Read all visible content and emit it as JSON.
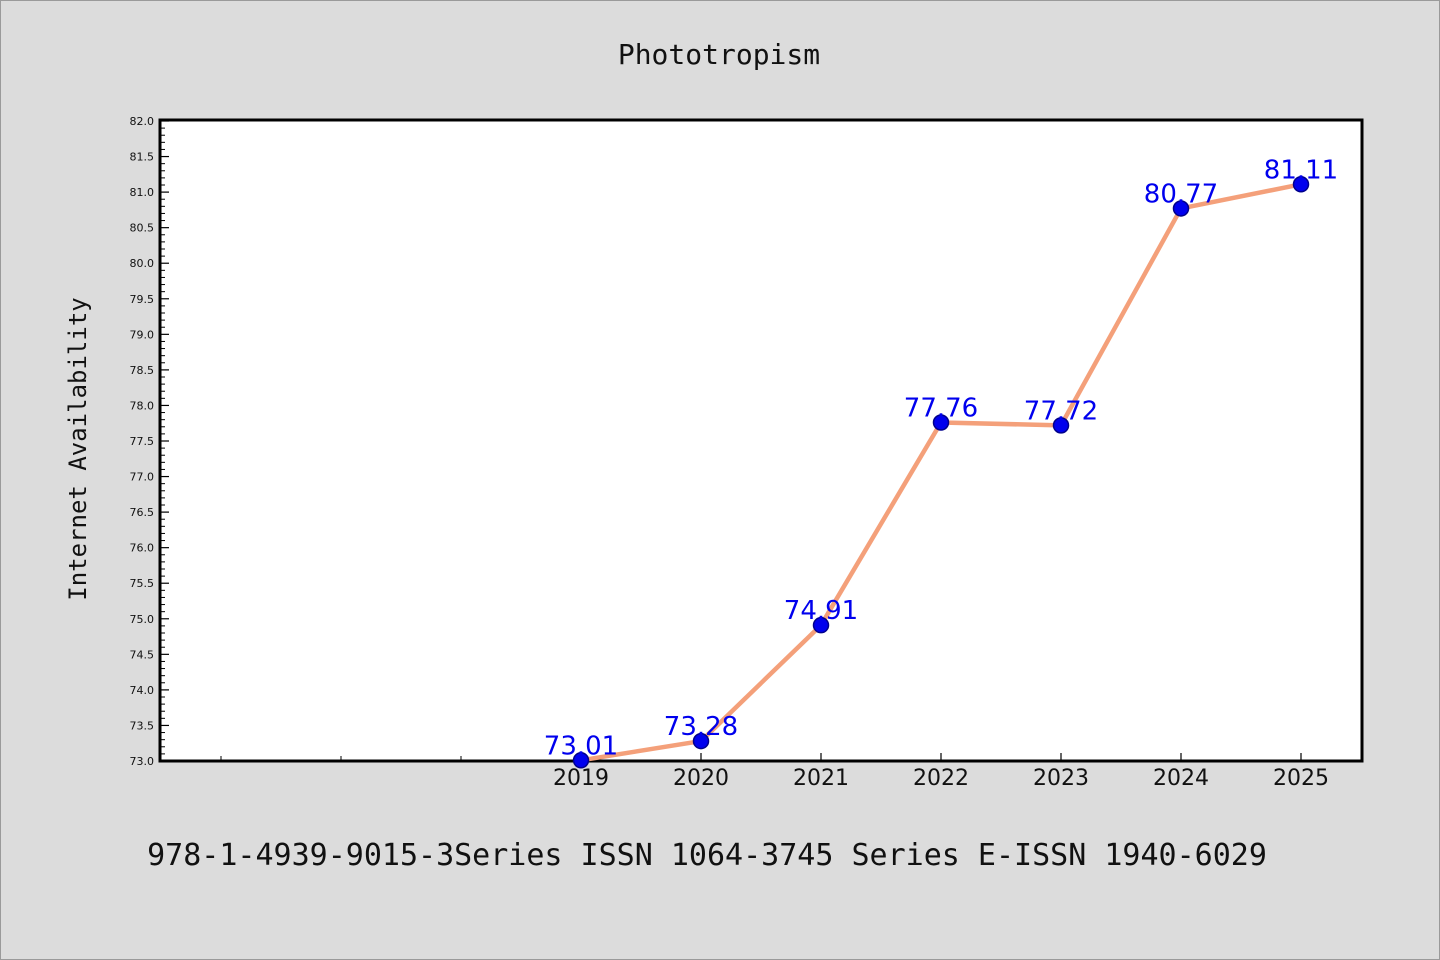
{
  "chart_data": {
    "type": "line",
    "title": "Phototropism",
    "xlabel": "",
    "ylabel": "Internet Availability",
    "categories": [
      "2019",
      "2020",
      "2021",
      "2022",
      "2023",
      "2024",
      "2025"
    ],
    "series": [
      {
        "values": [
          73.01,
          73.28,
          74.91,
          77.76,
          77.72,
          80.77,
          81.11
        ]
      }
    ],
    "data_labels": [
      "73.01",
      "73.28",
      "74.91",
      "77.76",
      "77.72",
      "80.77",
      "81.11"
    ],
    "ylim": [
      73.0,
      82.0
    ],
    "yticks": [
      "73.0",
      "73.5",
      "74.0",
      "74.5",
      "75.0",
      "75.5",
      "76.0",
      "76.5",
      "77.0",
      "77.5",
      "78.0",
      "78.5",
      "79.0",
      "79.5",
      "80.0",
      "80.5",
      "81.0",
      "81.5",
      "82.0"
    ],
    "grid": false,
    "legend": "none",
    "colors": {
      "line": "#f4a07a",
      "marker": "#0000ee",
      "marker_edge": "#00008b",
      "label": "#0000ee",
      "background": "#dcdcdc",
      "plot_area": "#ffffff"
    }
  },
  "footer": {
    "text": "978-1-4939-9015-3Series ISSN 1064-3745 Series E-ISSN 1940-6029"
  }
}
